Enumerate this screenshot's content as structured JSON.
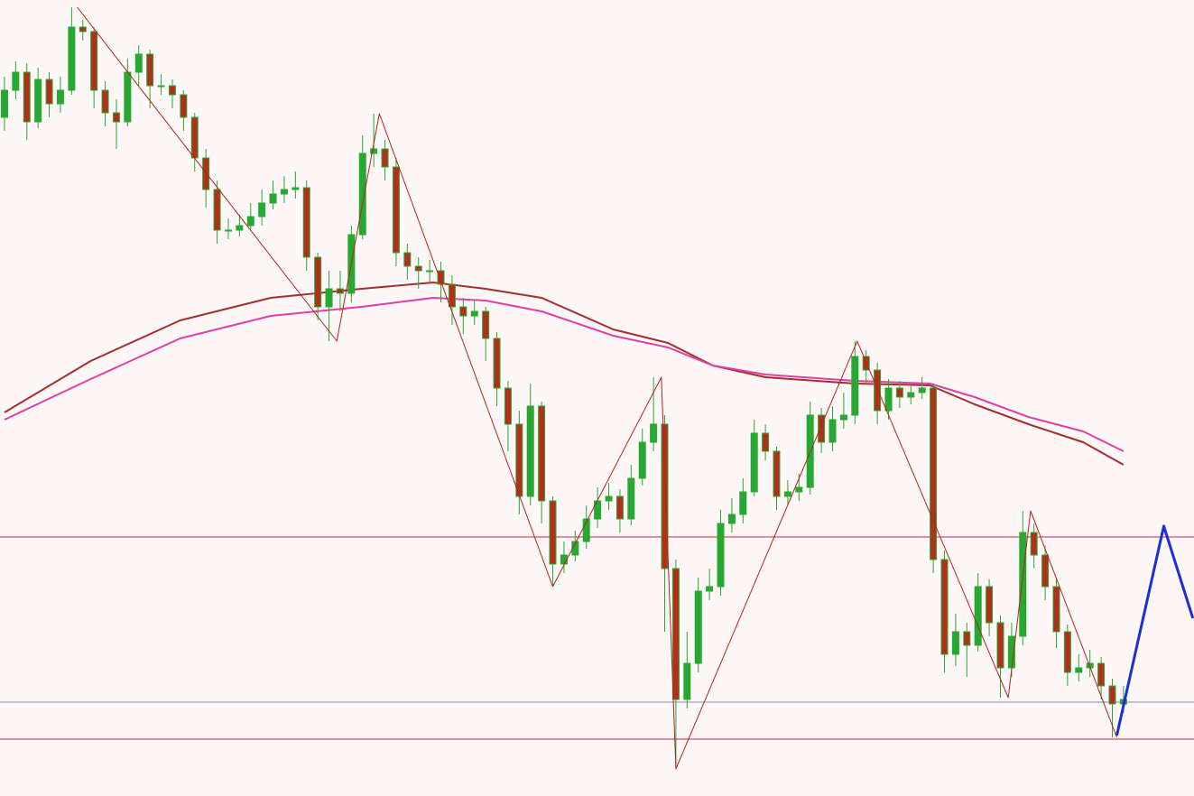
{
  "chart_data": {
    "type": "candlestick",
    "background": "#fdf7f7",
    "xlim": [
      -0.4,
      106.3
    ],
    "ylim": [
      118,
      1000
    ],
    "up_color": "#27a832",
    "down_color": "#b0301c",
    "open": [
      870,
      900,
      920,
      865,
      912,
      885,
      900,
      970,
      965,
      900,
      875,
      865,
      920,
      940,
      905,
      905,
      895,
      870,
      825,
      790,
      745,
      745,
      750,
      760,
      775,
      785,
      790,
      792,
      715,
      660,
      680,
      675,
      740,
      830,
      835,
      815,
      720,
      705,
      700,
      700,
      685,
      660,
      650,
      655,
      625,
      570,
      530,
      450,
      550,
      445,
      375,
      385,
      400,
      425,
      445,
      450,
      425,
      470,
      510,
      530,
      370,
      225,
      265,
      345,
      350,
      420,
      430,
      455,
      520,
      500,
      450,
      455,
      460,
      540,
      510,
      535,
      540,
      605,
      590,
      545,
      570,
      560,
      565,
      570,
      380,
      275,
      300,
      285,
      350,
      310,
      260,
      295,
      410,
      385,
      350,
      300,
      255,
      260,
      265,
      240,
      220
    ],
    "high": [
      915,
      932,
      930,
      925,
      920,
      915,
      992,
      978,
      970,
      910,
      890,
      935,
      950,
      945,
      918,
      912,
      900,
      875,
      835,
      800,
      758,
      762,
      775,
      790,
      800,
      805,
      810,
      800,
      720,
      700,
      700,
      750,
      850,
      874,
      845,
      825,
      730,
      715,
      712,
      710,
      695,
      670,
      668,
      660,
      632,
      578,
      545,
      575,
      555,
      450,
      400,
      412,
      440,
      460,
      465,
      458,
      485,
      525,
      582,
      540,
      380,
      300,
      360,
      370,
      435,
      448,
      470,
      535,
      530,
      505,
      468,
      475,
      555,
      548,
      550,
      565,
      622,
      612,
      598,
      580,
      578,
      575,
      582,
      575,
      390,
      320,
      310,
      365,
      358,
      318,
      310,
      434,
      420,
      395,
      360,
      308,
      275,
      280,
      272,
      248,
      240
    ],
    "low": [
      855,
      890,
      845,
      858,
      870,
      875,
      895,
      955,
      880,
      860,
      835,
      860,
      905,
      880,
      895,
      880,
      855,
      810,
      770,
      730,
      735,
      738,
      745,
      750,
      768,
      775,
      780,
      700,
      645,
      622,
      655,
      665,
      735,
      815,
      800,
      705,
      690,
      680,
      688,
      665,
      640,
      630,
      640,
      600,
      550,
      500,
      430,
      440,
      420,
      350,
      365,
      378,
      392,
      415,
      435,
      410,
      418,
      462,
      500,
      300,
      148,
      215,
      255,
      335,
      340,
      410,
      420,
      450,
      490,
      435,
      440,
      445,
      452,
      498,
      500,
      525,
      530,
      575,
      530,
      535,
      548,
      552,
      558,
      365,
      255,
      262,
      250,
      278,
      295,
      227,
      250,
      285,
      370,
      335,
      282,
      240,
      245,
      250,
      225,
      183,
      210
    ],
    "close": [
      900,
      920,
      865,
      912,
      885,
      900,
      970,
      965,
      900,
      875,
      865,
      920,
      940,
      905,
      905,
      895,
      870,
      825,
      790,
      745,
      745,
      750,
      760,
      775,
      785,
      790,
      792,
      715,
      660,
      680,
      675,
      740,
      830,
      835,
      815,
      720,
      705,
      700,
      700,
      685,
      660,
      650,
      655,
      625,
      570,
      530,
      450,
      550,
      445,
      375,
      385,
      400,
      425,
      445,
      450,
      425,
      470,
      510,
      530,
      370,
      225,
      265,
      345,
      350,
      420,
      430,
      455,
      520,
      500,
      450,
      455,
      460,
      540,
      510,
      535,
      540,
      605,
      590,
      545,
      570,
      560,
      565,
      570,
      380,
      275,
      300,
      285,
      350,
      310,
      260,
      295,
      410,
      385,
      350,
      300,
      255,
      260,
      265,
      240,
      220,
      225
    ],
    "overlays": [
      {
        "color": "#a3302c",
        "x": [
          0,
          7.7,
          15.7,
          23.8,
          31.9,
          38.3,
          43,
          48,
          54.4,
          59.3,
          63.3,
          68,
          76,
          82.7,
          86.7,
          91.5,
          96.4,
          100
        ],
        "values": [
          543,
          600,
          645,
          670,
          680,
          687,
          680,
          670,
          635,
          620,
          595,
          582,
          575,
          573,
          552,
          530,
          510,
          485
        ]
      },
      {
        "color": "#e23fa6",
        "x": [
          0,
          7.7,
          15.7,
          23.8,
          31.9,
          38.3,
          43,
          48,
          54.4,
          59.3,
          63.3,
          68,
          76,
          82.7,
          86.7,
          91.5,
          96.4,
          100
        ],
        "values": [
          535,
          580,
          625,
          650,
          660,
          670,
          667,
          655,
          628,
          615,
          595,
          585,
          578,
          575,
          560,
          538,
          522,
          500
        ]
      }
    ],
    "zigzag": {
      "color": "#b8211b",
      "x": [
        6.5,
        29.7,
        33.5,
        49,
        58.7,
        60,
        76.2,
        89.7,
        91.7,
        99.4
      ],
      "values": [
        992,
        622,
        874,
        350,
        582,
        148,
        622,
        227,
        434,
        183
      ]
    },
    "projection": {
      "color": "#1a2fd6",
      "x": [
        99.4,
        103.6,
        106.2
      ],
      "values": [
        185,
        417,
        315
      ]
    },
    "hlines": [
      {
        "value": 405,
        "color": "#d9262b"
      },
      {
        "value": 222,
        "color": "#7a8fa8"
      },
      {
        "value": 181,
        "color": "#d9262b"
      }
    ]
  }
}
